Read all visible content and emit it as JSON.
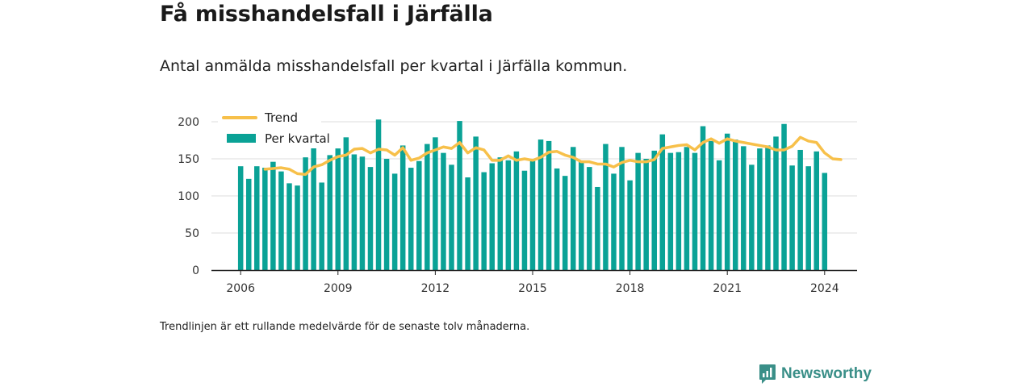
{
  "title": "Få misshandelsfall i Järfälla",
  "subtitle": "Antal anmälda misshandelsfall per kvartal i Järfälla kommun.",
  "note": "Trendlinjen är ett rullande medelvärde för de senaste tolv månaderna.",
  "brand": {
    "name": "Newsworthy",
    "color": "#3a8f88"
  },
  "colors": {
    "bars": "#0aa296",
    "trend": "#f7c04a",
    "grid": "#dddddd",
    "axis": "#222222"
  },
  "chart_data": {
    "type": "bar",
    "title": "",
    "xlabel": "",
    "ylabel": "",
    "ylim": [
      0,
      220
    ],
    "yticks": [
      0,
      50,
      100,
      150,
      200
    ],
    "xticks": [
      2006,
      2009,
      2012,
      2015,
      2018,
      2021,
      2024
    ],
    "xlim": [
      2005.1,
      2025.0
    ],
    "grid": true,
    "legend_position": "top-left",
    "series": [
      {
        "name": "Per kvartal",
        "kind": "bar",
        "start_year": 2006,
        "values": [
          140,
          123,
          140,
          138,
          146,
          133,
          117,
          114,
          152,
          171,
          118,
          155,
          164,
          179,
          156,
          153,
          139,
          203,
          150,
          130,
          168,
          138,
          147,
          170,
          179,
          158,
          142,
          201,
          125,
          180,
          132,
          144,
          152,
          148,
          160,
          134,
          147,
          176,
          174,
          137,
          127,
          166,
          147,
          139,
          112,
          170,
          130,
          166,
          121,
          158,
          150,
          161,
          183,
          158,
          159,
          166,
          158,
          194,
          174,
          148,
          184,
          176,
          167,
          142,
          164,
          168,
          180,
          197,
          141,
          162,
          140,
          160,
          131
        ]
      },
      {
        "name": "Trend",
        "kind": "line",
        "start": 2006.75,
        "values": [
          136,
          137,
          138,
          136,
          130,
          129,
          139,
          142,
          148,
          153,
          155,
          163,
          164,
          158,
          163,
          162,
          155,
          165,
          148,
          151,
          158,
          162,
          166,
          164,
          172,
          158,
          165,
          162,
          148,
          148,
          154,
          148,
          150,
          148,
          152,
          159,
          160,
          155,
          152,
          146,
          146,
          143,
          143,
          139,
          145,
          148,
          146,
          146,
          149,
          164,
          166,
          168,
          169,
          162,
          172,
          177,
          171,
          177,
          174,
          172,
          170,
          168,
          166,
          162,
          162,
          167,
          179,
          174,
          172,
          158,
          150,
          149
        ]
      }
    ]
  }
}
